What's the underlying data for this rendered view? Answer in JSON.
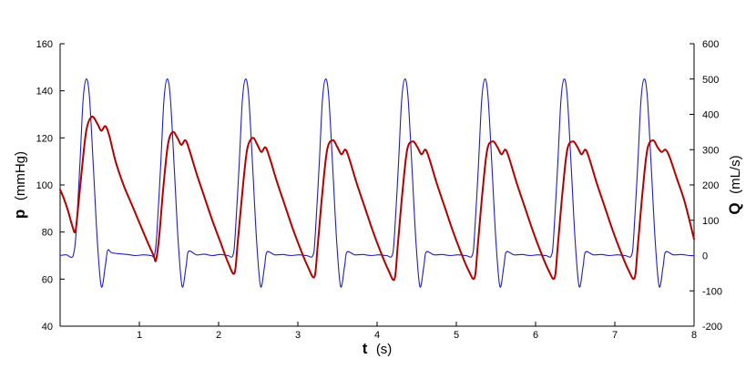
{
  "chart_data": {
    "type": "line",
    "x_axis": {
      "symbol": "t",
      "unit": "(s)",
      "range": [
        0,
        8
      ],
      "ticks": [
        1,
        2,
        3,
        4,
        5,
        6,
        7,
        8
      ],
      "tick_labels": [
        "1",
        "2",
        "3",
        "4",
        "5",
        "6",
        "7",
        "8"
      ]
    },
    "y_axis_left": {
      "symbol": "p",
      "unit": "(mmHg)",
      "range": [
        40,
        160
      ],
      "ticks": [
        40,
        60,
        80,
        100,
        120,
        140,
        160
      ],
      "tick_labels": [
        "40",
        "60",
        "80",
        "100",
        "120",
        "140",
        "160"
      ]
    },
    "y_axis_right": {
      "symbol": "Q",
      "unit": "(mL/s)",
      "range": [
        -200,
        600
      ],
      "ticks": [
        -200,
        -100,
        0,
        100,
        200,
        300,
        400,
        500,
        600
      ],
      "tick_labels": [
        "-200",
        "-100",
        "0",
        "100",
        "200",
        "300",
        "400",
        "500",
        "600"
      ]
    },
    "grid": false,
    "legend": "none",
    "series": [
      {
        "axis": "left",
        "color": "#b30000",
        "points": [
          [
            0.0,
            98
          ],
          [
            0.05,
            94
          ],
          [
            0.1,
            89
          ],
          [
            0.15,
            83
          ],
          [
            0.19,
            80
          ],
          [
            0.22,
            88
          ],
          [
            0.27,
            105
          ],
          [
            0.33,
            123
          ],
          [
            0.4,
            129
          ],
          [
            0.47,
            126
          ],
          [
            0.52,
            123
          ],
          [
            0.57,
            125
          ],
          [
            0.62,
            121
          ],
          [
            0.7,
            110
          ],
          [
            0.8,
            100
          ],
          [
            0.9,
            92
          ],
          [
            1.0,
            84
          ],
          [
            1.1,
            76
          ],
          [
            1.18,
            70
          ],
          [
            1.21,
            68
          ],
          [
            1.25,
            78
          ],
          [
            1.3,
            98
          ],
          [
            1.36,
            117
          ],
          [
            1.42,
            122.5
          ],
          [
            1.48,
            120
          ],
          [
            1.53,
            117
          ],
          [
            1.58,
            119
          ],
          [
            1.63,
            115
          ],
          [
            1.72,
            105
          ],
          [
            1.82,
            95
          ],
          [
            1.92,
            85
          ],
          [
            2.02,
            76
          ],
          [
            2.12,
            67
          ],
          [
            2.2,
            62.5
          ],
          [
            2.24,
            75
          ],
          [
            2.3,
            97
          ],
          [
            2.36,
            115
          ],
          [
            2.43,
            120
          ],
          [
            2.49,
            117
          ],
          [
            2.54,
            114
          ],
          [
            2.59,
            116
          ],
          [
            2.64,
            112
          ],
          [
            2.73,
            102
          ],
          [
            2.83,
            92
          ],
          [
            2.93,
            82
          ],
          [
            3.03,
            73
          ],
          [
            3.13,
            65
          ],
          [
            3.21,
            61
          ],
          [
            3.25,
            74
          ],
          [
            3.31,
            97
          ],
          [
            3.37,
            115
          ],
          [
            3.44,
            119
          ],
          [
            3.5,
            116
          ],
          [
            3.55,
            113
          ],
          [
            3.6,
            115
          ],
          [
            3.65,
            111
          ],
          [
            3.74,
            101
          ],
          [
            3.84,
            91
          ],
          [
            3.94,
            81
          ],
          [
            4.04,
            72
          ],
          [
            4.14,
            64
          ],
          [
            4.22,
            60
          ],
          [
            4.26,
            74
          ],
          [
            4.32,
            97
          ],
          [
            4.38,
            115
          ],
          [
            4.45,
            118.5
          ],
          [
            4.51,
            116
          ],
          [
            4.56,
            113
          ],
          [
            4.61,
            115
          ],
          [
            4.66,
            111
          ],
          [
            4.75,
            101
          ],
          [
            4.85,
            91
          ],
          [
            4.95,
            81
          ],
          [
            5.05,
            72
          ],
          [
            5.15,
            64
          ],
          [
            5.23,
            60.5
          ],
          [
            5.27,
            74
          ],
          [
            5.33,
            97
          ],
          [
            5.39,
            115
          ],
          [
            5.46,
            118.5
          ],
          [
            5.52,
            116
          ],
          [
            5.57,
            113
          ],
          [
            5.62,
            115
          ],
          [
            5.67,
            111
          ],
          [
            5.76,
            101
          ],
          [
            5.86,
            91
          ],
          [
            5.96,
            81
          ],
          [
            6.06,
            72
          ],
          [
            6.16,
            64
          ],
          [
            6.24,
            60.5
          ],
          [
            6.28,
            74
          ],
          [
            6.34,
            97
          ],
          [
            6.4,
            115
          ],
          [
            6.47,
            118.5
          ],
          [
            6.53,
            116
          ],
          [
            6.58,
            113
          ],
          [
            6.63,
            115
          ],
          [
            6.68,
            111
          ],
          [
            6.77,
            101
          ],
          [
            6.87,
            91
          ],
          [
            6.97,
            81
          ],
          [
            7.07,
            72
          ],
          [
            7.17,
            64
          ],
          [
            7.25,
            60.5
          ],
          [
            7.29,
            74
          ],
          [
            7.35,
            97
          ],
          [
            7.41,
            115
          ],
          [
            7.48,
            119
          ],
          [
            7.54,
            116
          ],
          [
            7.59,
            114
          ],
          [
            7.64,
            115
          ],
          [
            7.69,
            112
          ],
          [
            7.78,
            103
          ],
          [
            7.88,
            93
          ],
          [
            8.0,
            77
          ]
        ]
      },
      {
        "axis": "right",
        "color": "#1f1fbf",
        "points": [
          [
            0.0,
            0
          ],
          [
            0.08,
            2
          ],
          [
            0.14,
            -5
          ],
          [
            0.17,
            5
          ],
          [
            0.2,
            60
          ],
          [
            0.25,
            260
          ],
          [
            0.29,
            440
          ],
          [
            0.33,
            500
          ],
          [
            0.37,
            450
          ],
          [
            0.42,
            250
          ],
          [
            0.47,
            40
          ],
          [
            0.52,
            -88
          ],
          [
            0.57,
            -30
          ],
          [
            0.6,
            15
          ],
          [
            0.65,
            8
          ],
          [
            0.75,
            5
          ],
          [
            0.85,
            3
          ],
          [
            0.95,
            0
          ],
          [
            1.05,
            2
          ],
          [
            1.15,
            0
          ],
          [
            1.19,
            0
          ],
          [
            1.22,
            60
          ],
          [
            1.27,
            260
          ],
          [
            1.31,
            440
          ],
          [
            1.35,
            500
          ],
          [
            1.39,
            450
          ],
          [
            1.44,
            250
          ],
          [
            1.49,
            40
          ],
          [
            1.54,
            -88
          ],
          [
            1.59,
            -30
          ],
          [
            1.62,
            12
          ],
          [
            1.72,
            2
          ],
          [
            1.82,
            4
          ],
          [
            1.92,
            0
          ],
          [
            2.02,
            3
          ],
          [
            2.12,
            0
          ],
          [
            2.18,
            0
          ],
          [
            2.21,
            60
          ],
          [
            2.26,
            260
          ],
          [
            2.3,
            440
          ],
          [
            2.34,
            500
          ],
          [
            2.38,
            450
          ],
          [
            2.43,
            250
          ],
          [
            2.48,
            40
          ],
          [
            2.53,
            -88
          ],
          [
            2.58,
            -30
          ],
          [
            2.61,
            10
          ],
          [
            2.71,
            2
          ],
          [
            2.81,
            3
          ],
          [
            2.91,
            0
          ],
          [
            3.01,
            2
          ],
          [
            3.11,
            0
          ],
          [
            3.19,
            0
          ],
          [
            3.22,
            60
          ],
          [
            3.27,
            260
          ],
          [
            3.31,
            440
          ],
          [
            3.35,
            500
          ],
          [
            3.39,
            450
          ],
          [
            3.44,
            250
          ],
          [
            3.49,
            40
          ],
          [
            3.54,
            -88
          ],
          [
            3.59,
            -30
          ],
          [
            3.62,
            10
          ],
          [
            3.72,
            2
          ],
          [
            3.82,
            3
          ],
          [
            3.92,
            0
          ],
          [
            4.02,
            2
          ],
          [
            4.12,
            0
          ],
          [
            4.19,
            0
          ],
          [
            4.22,
            60
          ],
          [
            4.27,
            260
          ],
          [
            4.31,
            440
          ],
          [
            4.35,
            500
          ],
          [
            4.39,
            450
          ],
          [
            4.44,
            250
          ],
          [
            4.49,
            40
          ],
          [
            4.54,
            -88
          ],
          [
            4.59,
            -30
          ],
          [
            4.62,
            10
          ],
          [
            4.72,
            2
          ],
          [
            4.82,
            3
          ],
          [
            4.92,
            0
          ],
          [
            5.02,
            2
          ],
          [
            5.12,
            0
          ],
          [
            5.2,
            0
          ],
          [
            5.23,
            60
          ],
          [
            5.28,
            260
          ],
          [
            5.32,
            440
          ],
          [
            5.36,
            500
          ],
          [
            5.4,
            450
          ],
          [
            5.45,
            250
          ],
          [
            5.5,
            40
          ],
          [
            5.55,
            -88
          ],
          [
            5.6,
            -30
          ],
          [
            5.63,
            10
          ],
          [
            5.73,
            2
          ],
          [
            5.83,
            3
          ],
          [
            5.93,
            0
          ],
          [
            6.03,
            2
          ],
          [
            6.13,
            0
          ],
          [
            6.2,
            0
          ],
          [
            6.23,
            60
          ],
          [
            6.28,
            260
          ],
          [
            6.32,
            440
          ],
          [
            6.36,
            500
          ],
          [
            6.4,
            450
          ],
          [
            6.45,
            250
          ],
          [
            6.5,
            40
          ],
          [
            6.55,
            -88
          ],
          [
            6.6,
            -30
          ],
          [
            6.63,
            10
          ],
          [
            6.73,
            2
          ],
          [
            6.83,
            3
          ],
          [
            6.93,
            0
          ],
          [
            7.03,
            2
          ],
          [
            7.13,
            0
          ],
          [
            7.21,
            0
          ],
          [
            7.24,
            60
          ],
          [
            7.29,
            260
          ],
          [
            7.33,
            440
          ],
          [
            7.37,
            500
          ],
          [
            7.41,
            450
          ],
          [
            7.46,
            250
          ],
          [
            7.51,
            40
          ],
          [
            7.56,
            -88
          ],
          [
            7.61,
            -30
          ],
          [
            7.64,
            10
          ],
          [
            7.74,
            2
          ],
          [
            7.84,
            3
          ],
          [
            7.94,
            0
          ],
          [
            8.0,
            0
          ]
        ]
      }
    ]
  }
}
